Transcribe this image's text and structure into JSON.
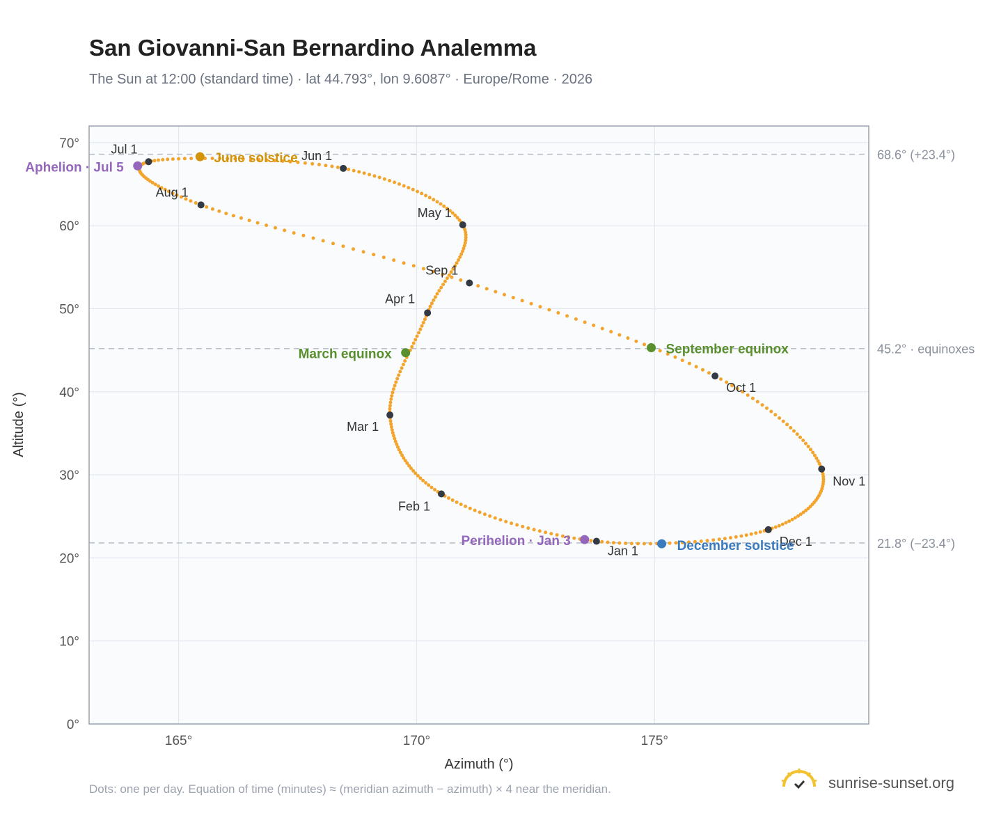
{
  "header": {
    "title": "San Giovanni-San Bernardino Analemma",
    "subtitle": "The Sun at 12:00 (standard time) · lat 44.793°, lon 9.6087° · Europe/Rome · 2026"
  },
  "footer": {
    "note": "Dots: one per day. Equation of time (minutes) ≈ (meridian azimuth − azimuth) × 4 near the meridian.",
    "brand": "sunrise-sunset.org"
  },
  "colors": {
    "curve": "#f2a42c",
    "month_dot": "#333a44",
    "solstice_june": "#d4940a",
    "solstice_december": "#3a7abf",
    "equinox": "#5a8f2e",
    "apsis": "#9467bd",
    "reference_line": "#b8bec8",
    "plot_bg": "#f9fbfd",
    "grid": "#e4e8ee"
  },
  "chart_data": {
    "type": "scatter",
    "title": "San Giovanni-San Bernardino Analemma",
    "xlabel": "Azimuth (°)",
    "ylabel": "Altitude (°)",
    "xlim": [
      163.12,
      179.5
    ],
    "ylim": [
      0,
      72
    ],
    "x_ticks": [
      165,
      170,
      175
    ],
    "y_ticks": [
      0,
      10,
      20,
      30,
      40,
      50,
      60,
      70
    ],
    "x_tick_labels": [
      "165°",
      "170°",
      "175°"
    ],
    "y_tick_labels": [
      "0°",
      "10°",
      "20°",
      "30°",
      "40°",
      "50°",
      "60°",
      "70°"
    ],
    "grid": true,
    "reference_lines": [
      {
        "y": 68.6,
        "label": "68.6° (+23.4°)"
      },
      {
        "y": 45.2,
        "label": "45.2° · equinoxes"
      },
      {
        "y": 21.8,
        "label": "21.8° (−23.4°)"
      }
    ],
    "month_points": [
      {
        "label": "Jan 1",
        "x": 173.78,
        "y": 22.0
      },
      {
        "label": "Feb 1",
        "x": 170.52,
        "y": 27.7
      },
      {
        "label": "Mar 1",
        "x": 169.44,
        "y": 37.2
      },
      {
        "label": "Apr 1",
        "x": 170.23,
        "y": 49.5
      },
      {
        "label": "May 1",
        "x": 170.97,
        "y": 60.1
      },
      {
        "label": "Jun 1",
        "x": 168.46,
        "y": 66.9
      },
      {
        "label": "Jul 1",
        "x": 164.37,
        "y": 67.7
      },
      {
        "label": "Aug 1",
        "x": 165.47,
        "y": 62.5
      },
      {
        "label": "Sep 1",
        "x": 171.11,
        "y": 53.1
      },
      {
        "label": "Oct 1",
        "x": 176.27,
        "y": 41.9
      },
      {
        "label": "Nov 1",
        "x": 178.51,
        "y": 30.7
      },
      {
        "label": "Dec 1",
        "x": 177.39,
        "y": 23.4
      }
    ],
    "events": [
      {
        "label": "June solstice",
        "x": 165.45,
        "y": 68.3,
        "kind": "solstice_june"
      },
      {
        "label": "December solstice",
        "x": 175.15,
        "y": 21.7,
        "kind": "solstice_december"
      },
      {
        "label": "March equinox",
        "x": 169.77,
        "y": 44.7,
        "kind": "equinox"
      },
      {
        "label": "September equinox",
        "x": 174.93,
        "y": 45.3,
        "kind": "equinox"
      },
      {
        "label": "Aphelion · Jul 5",
        "x": 164.14,
        "y": 67.2,
        "kind": "apsis"
      },
      {
        "label": "Perihelion · Jan 3",
        "x": 173.53,
        "y": 22.2,
        "kind": "apsis"
      }
    ]
  }
}
